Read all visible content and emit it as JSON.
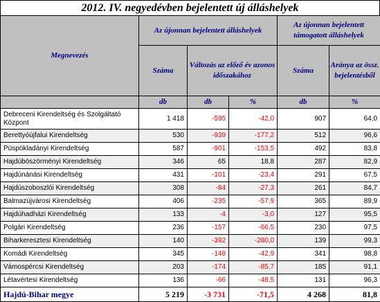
{
  "title": "2012. IV. negyedévben bejelentett új álláshelyek",
  "header": {
    "name_col": "Megnevezés",
    "group1": "Az újonnan bejelentett álláshelyek",
    "group2": "Az újonnan bejelentett támogatott álláshelyek",
    "col_szama": "Száma",
    "col_valtozas": "Változás az előző év azonos időszakához",
    "col_szama2": "Száma",
    "col_aranya": "Aránya az össz. bejelentésből",
    "unit_db1": "db",
    "unit_db2": "db",
    "unit_pct1": "%",
    "unit_db3": "db",
    "unit_pct2": "%"
  },
  "rows": [
    {
      "name": "Debreceni Kirendeltség és Szolgáltató Központ",
      "szama": "1 418",
      "valt_db": "-595",
      "valt_pct": "-42,0",
      "tam_szama": "907",
      "aranya": "64,0"
    },
    {
      "name": "Berettyóújfalui Kirendeltség",
      "szama": "530",
      "valt_db": "-939",
      "valt_pct": "-177,2",
      "tam_szama": "512",
      "aranya": "96,6"
    },
    {
      "name": "Püspökladányi Kirendeltség",
      "szama": "587",
      "valt_db": "-901",
      "valt_pct": "-153,5",
      "tam_szama": "492",
      "aranya": "83,8"
    },
    {
      "name": "Hajdúböszörményi Kirendeltség",
      "szama": "346",
      "valt_db": "65",
      "valt_pct": "18,8",
      "tam_szama": "287",
      "aranya": "82,9"
    },
    {
      "name": "Hajdúnánási Kirendeltség",
      "szama": "431",
      "valt_db": "-101",
      "valt_pct": "-23,4",
      "tam_szama": "291",
      "aranya": "67,5"
    },
    {
      "name": "Hajdúszoboszlói Kirendeltség",
      "szama": "308",
      "valt_db": "-84",
      "valt_pct": "-27,3",
      "tam_szama": "261",
      "aranya": "84,7"
    },
    {
      "name": "Balmazújvárosi Kirendeltség",
      "szama": "406",
      "valt_db": "-235",
      "valt_pct": "-57,9",
      "tam_szama": "365",
      "aranya": "89,9"
    },
    {
      "name": "Hajdúhadházi Kirendeltség",
      "szama": "133",
      "valt_db": "-4",
      "valt_pct": "-3,0",
      "tam_szama": "127",
      "aranya": "95,5"
    },
    {
      "name": "Polgári Kirendeltség",
      "szama": "236",
      "valt_db": "-157",
      "valt_pct": "-66,5",
      "tam_szama": "230",
      "aranya": "97,5"
    },
    {
      "name": "Biharkeresztesi Kirendeltség",
      "szama": "140",
      "valt_db": "-392",
      "valt_pct": "-280,0",
      "tam_szama": "139",
      "aranya": "99,3"
    },
    {
      "name": "Komádi Kirendeltség",
      "szama": "345",
      "valt_db": "-148",
      "valt_pct": "-42,9",
      "tam_szama": "341",
      "aranya": "98,8"
    },
    {
      "name": "Vámospércsi Kirendeltség",
      "szama": "203",
      "valt_db": "-174",
      "valt_pct": "-85,7",
      "tam_szama": "185",
      "aranya": "91,1"
    },
    {
      "name": "Létavértesi Kirendeltség",
      "szama": "136",
      "valt_db": "-66",
      "valt_pct": "-48,5",
      "tam_szama": "131",
      "aranya": "96,3"
    }
  ],
  "total": {
    "name": "Hajdú-Bihar megye",
    "szama": "5 219",
    "valt_db": "-3 731",
    "valt_pct": "-71,5",
    "tam_szama": "4 268",
    "aranya": "81,8"
  },
  "colors": {
    "header_bg": "#c0c0c0",
    "header_text": "#000080",
    "negative": "#ff0000",
    "stripe": "#efefef"
  }
}
